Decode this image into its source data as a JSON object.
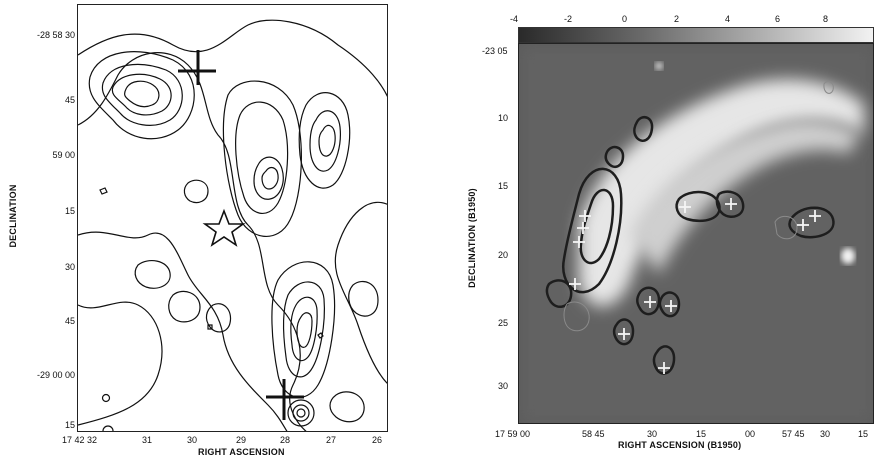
{
  "left_panel": {
    "y_axis_title": "DECLINATION",
    "x_axis_title": "RIGHT ASCENSION",
    "y_ticks": [
      "-28 58 30",
      "45",
      "59 00",
      "15",
      "30",
      "45",
      "-29 00 00",
      "15"
    ],
    "x_ticks": [
      "17 42 32",
      "31",
      "30",
      "29",
      "28",
      "27",
      "26"
    ]
  },
  "right_panel": {
    "y_axis_title": "DECLINATION (B1950)",
    "x_axis_title": "RIGHT ASCENSION (B1950)",
    "y_ticks": [
      "-23 05",
      "10",
      "15",
      "20",
      "25",
      "30"
    ],
    "x_ticks": [
      "17 59 00",
      "58 45",
      "30",
      "15",
      "00",
      "57 45",
      "30",
      "15"
    ],
    "colorbar_ticks": [
      "-4",
      "-2",
      "0",
      "2",
      "4",
      "6",
      "8"
    ]
  }
}
